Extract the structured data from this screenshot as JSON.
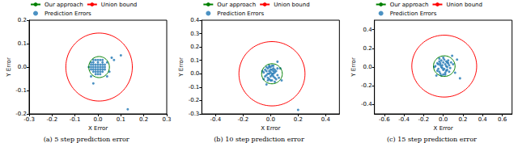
{
  "chart_data": [
    {
      "type": "scatter",
      "title": "(a) 5 step prediction error",
      "xlabel": "X Error",
      "ylabel": "Y Error",
      "xlim": [
        -0.3,
        0.3
      ],
      "ylim": [
        -0.2,
        0.2
      ],
      "xticks": [
        -0.3,
        -0.2,
        -0.1,
        {
          "value": 0,
          "label": "0.0"
        },
        0.1,
        0.2,
        0.3
      ],
      "yticks": [
        -0.2,
        -0.1,
        {
          "value": 0,
          "label": "0.0"
        },
        0.1,
        0.2
      ],
      "grid": false,
      "legend": "top",
      "series": [
        {
          "name": "Our approach",
          "type": "circle",
          "color": "#008000",
          "line_style": "solid",
          "center": [
            0.005,
            0.0
          ],
          "radius": 0.045
        },
        {
          "name": "Union bound",
          "type": "circle",
          "color": "#ff0000",
          "line_style": "solid",
          "center": [
            0.005,
            0.0
          ],
          "radius": 0.145
        },
        {
          "name": "Prediction Errors",
          "type": "scatter",
          "color": "#1f77b4",
          "marker": "circle",
          "x": [
            -0.03,
            -0.02,
            -0.01,
            0,
            0.01,
            0.02,
            -0.03,
            -0.02,
            -0.01,
            0,
            0.01,
            0.02,
            0.03,
            -0.03,
            -0.02,
            -0.01,
            0,
            0.01,
            0.02,
            0.03,
            -0.03,
            -0.02,
            -0.01,
            0,
            0.01,
            0.02,
            0.03,
            -0.02,
            -0.01,
            0,
            0.01,
            0.02,
            -0.01,
            0,
            0.01,
            -0.02,
            0,
            0.02,
            0.04,
            -0.04,
            0.04,
            -0.03,
            -0.02,
            0.06,
            0.1,
            0.07,
            0.13,
            0.05
          ],
          "y": [
            0.02,
            0.03,
            0.03,
            0.03,
            0.03,
            0.03,
            0.01,
            0.01,
            0.01,
            0.01,
            0.01,
            0.01,
            0.01,
            0,
            0,
            0,
            0,
            0,
            0,
            0,
            -0.01,
            -0.01,
            -0.01,
            -0.01,
            -0.01,
            -0.01,
            -0.01,
            -0.02,
            -0.02,
            -0.02,
            -0.02,
            -0.02,
            -0.03,
            -0.03,
            -0.03,
            0.02,
            0.02,
            0.02,
            0.02,
            0,
            -0.04,
            -0.04,
            -0.07,
            0.04,
            0.05,
            0.03,
            -0.18,
            -0.02
          ]
        }
      ]
    },
    {
      "type": "scatter",
      "title": "(b) 10 step prediction error",
      "xlabel": "X Error",
      "ylabel": "Y Error",
      "xlim": [
        -0.5,
        0.5
      ],
      "ylim": [
        -0.3,
        0.4
      ],
      "xticks": [
        -0.4,
        -0.2,
        {
          "value": 0,
          "label": "0.0"
        },
        0.2,
        0.4
      ],
      "yticks": [
        -0.3,
        -0.2,
        -0.1,
        {
          "value": 0,
          "label": "0.0"
        },
        0.1,
        0.2,
        0.3,
        0.4
      ],
      "grid": false,
      "legend": "top",
      "series": [
        {
          "name": "Our approach",
          "type": "circle",
          "color": "#008000",
          "line_style": "solid",
          "center": [
            0.01,
            0.0
          ],
          "radius": 0.075
        },
        {
          "name": "Union bound",
          "type": "circle",
          "color": "#ff0000",
          "line_style": "solid",
          "center": [
            0.01,
            0.0
          ],
          "radius": 0.24
        },
        {
          "name": "Prediction Errors",
          "type": "scatter",
          "color": "#1f77b4",
          "marker": "circle",
          "x": [
            -0.05,
            -0.04,
            -0.03,
            -0.02,
            -0.01,
            0,
            0.01,
            0.02,
            0.03,
            0.04,
            0.05,
            -0.04,
            -0.03,
            -0.02,
            -0.01,
            0,
            0.01,
            0.02,
            0.03,
            0.04,
            -0.03,
            -0.02,
            -0.01,
            0,
            0.01,
            0.02,
            0.03,
            -0.02,
            -0.01,
            0,
            0.01,
            0.02,
            0.03,
            -0.01,
            0,
            0.01,
            0.02,
            -0.05,
            0.05,
            0.06,
            -0.06,
            0.07,
            0.08,
            0.05,
            -0.03,
            0.2
          ],
          "y": [
            0.01,
            0.03,
            -0.01,
            0.04,
            0.02,
            0.05,
            0.03,
            0.04,
            0.01,
            0.02,
            -0.01,
            -0.02,
            0.02,
            -0.03,
            0.0,
            0.01,
            -0.01,
            0.0,
            -0.03,
            -0.04,
            0.05,
            0.0,
            -0.04,
            -0.02,
            0.06,
            -0.02,
            0.03,
            -0.05,
            0.05,
            -0.05,
            -0.05,
            0.06,
            -0.06,
            0.06,
            0.03,
            0.0,
            0.02,
            -0.04,
            0.04,
            -0.03,
            0.02,
            0.04,
            -0.05,
            0.09,
            -0.08,
            -0.27
          ]
        }
      ]
    },
    {
      "type": "scatter",
      "title": "(c) 15 step prediction error",
      "xlabel": "X Error",
      "ylabel": "Y Error",
      "xlim": [
        -0.7,
        0.7
      ],
      "ylim": [
        -0.5,
        0.5
      ],
      "xticks": [
        -0.6,
        -0.4,
        -0.2,
        {
          "value": 0,
          "label": "0.0"
        },
        0.2,
        0.4,
        0.6
      ],
      "yticks": [
        -0.4,
        -0.2,
        {
          "value": 0,
          "label": "0.0"
        },
        0.2,
        0.4
      ],
      "grid": false,
      "legend": "top",
      "series": [
        {
          "name": "Our approach",
          "type": "circle",
          "color": "#008000",
          "line_style": "solid",
          "center": [
            0.01,
            0.01
          ],
          "radius": 0.11
        },
        {
          "name": "Union bound",
          "type": "circle",
          "color": "#ff0000",
          "line_style": "solid",
          "center": [
            0.01,
            0.01
          ],
          "radius": 0.33
        },
        {
          "name": "Prediction Errors",
          "type": "scatter",
          "color": "#1f77b4",
          "marker": "circle",
          "x": [
            -0.08,
            -0.06,
            -0.05,
            -0.04,
            -0.03,
            -0.02,
            -0.01,
            0,
            0.01,
            0.02,
            0.03,
            0.04,
            0.05,
            0.06,
            0.07,
            -0.06,
            -0.04,
            -0.02,
            0,
            0.02,
            0.04,
            0.06,
            -0.05,
            -0.03,
            -0.01,
            0.01,
            0.03,
            0.05,
            -0.04,
            -0.02,
            0,
            0.02,
            0.04,
            -0.03,
            0,
            0.03,
            0.08,
            -0.09,
            0.1,
            0.12,
            -0.07,
            0.14,
            0.09,
            0.17
          ],
          "y": [
            0.01,
            0.04,
            -0.02,
            0.06,
            0.02,
            0.07,
            -0.01,
            0.05,
            0.08,
            0.03,
            0.06,
            0.0,
            0.04,
            0.02,
            -0.01,
            -0.04,
            -0.05,
            0.0,
            -0.03,
            -0.06,
            -0.03,
            -0.05,
            0.03,
            -0.07,
            0.02,
            -0.02,
            0.01,
            0.07,
            0.09,
            -0.09,
            0.1,
            -0.08,
            0.05,
            0.04,
            -0.08,
            -0.04,
            0.05,
            0.0,
            0.03,
            -0.06,
            -0.09,
            0.08,
            0.12,
            -0.12
          ]
        }
      ]
    }
  ]
}
